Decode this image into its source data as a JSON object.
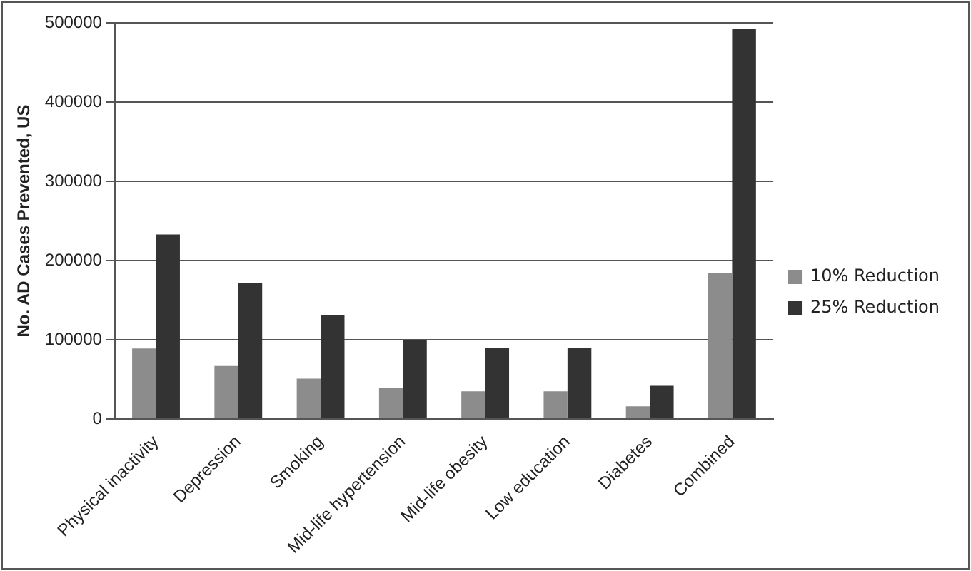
{
  "chart_data": {
    "type": "bar",
    "ylabel": "No. AD Cases Prevented, US",
    "categories": [
      "Physical inactivity",
      "Depression",
      "Smoking",
      "Mid-life hypertension",
      "Mid-life obesity",
      "Low education",
      "Diabetes",
      "Combined"
    ],
    "series": [
      {
        "name": "10% Reduction",
        "color": "#8c8c8c",
        "values": [
          89000,
          67000,
          51000,
          39000,
          35000,
          35000,
          16000,
          184000
        ]
      },
      {
        "name": "25% Reduction",
        "color": "#333333",
        "values": [
          233000,
          172000,
          131000,
          100000,
          90000,
          90000,
          42000,
          492000
        ]
      }
    ],
    "ylim": [
      0,
      500000
    ],
    "yticks": [
      0,
      100000,
      200000,
      300000,
      400000,
      500000
    ],
    "grid": "y",
    "legend": "right"
  }
}
